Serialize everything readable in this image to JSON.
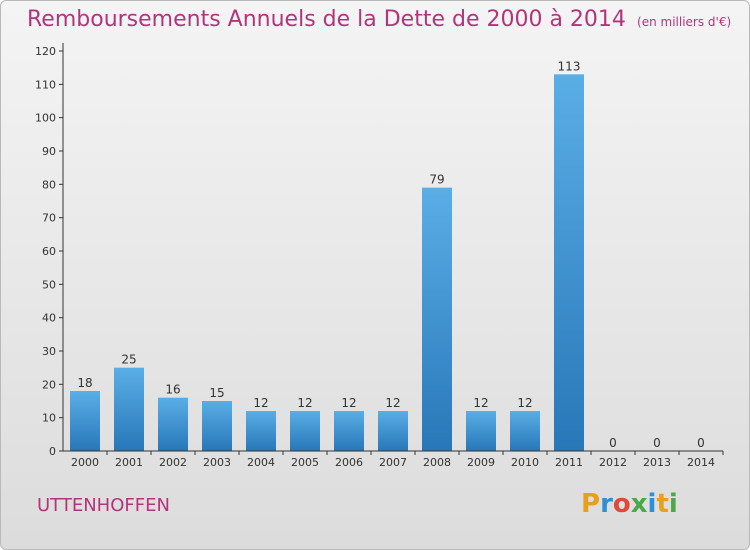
{
  "chart_data": {
    "type": "bar",
    "title": "Remboursements Annuels de la Dette de 2000 à 2014",
    "unit_note": "(en milliers d'€)",
    "categories": [
      "2000",
      "2001",
      "2002",
      "2003",
      "2004",
      "2005",
      "2006",
      "2007",
      "2008",
      "2009",
      "2010",
      "2011",
      "2012",
      "2013",
      "2014"
    ],
    "values": [
      18,
      25,
      16,
      15,
      12,
      12,
      12,
      12,
      79,
      12,
      12,
      113,
      0,
      0,
      0
    ],
    "ylim": [
      0,
      120
    ],
    "yticks": [
      0,
      10,
      20,
      30,
      40,
      50,
      60,
      70,
      80,
      90,
      100,
      110,
      120
    ],
    "xlabel": "",
    "ylabel": "",
    "grid": false,
    "bar_color_top": "#5aaee6",
    "bar_color_bottom": "#2877b8",
    "axis_color": "#333333"
  },
  "location": "UTTENHOFFEN",
  "logo": {
    "letters": [
      "P",
      "r",
      "o",
      "x",
      "i",
      "t",
      "i"
    ],
    "colors": [
      "#e8a01c",
      "#2d8fd6",
      "#e0493a",
      "#4aa84a",
      "#2d8fd6",
      "#e8a01c",
      "#4aa84a"
    ]
  },
  "colors": {
    "title": "#b2357c",
    "background_top": "#f4f4f4",
    "background_bottom": "#dcdcdc"
  }
}
